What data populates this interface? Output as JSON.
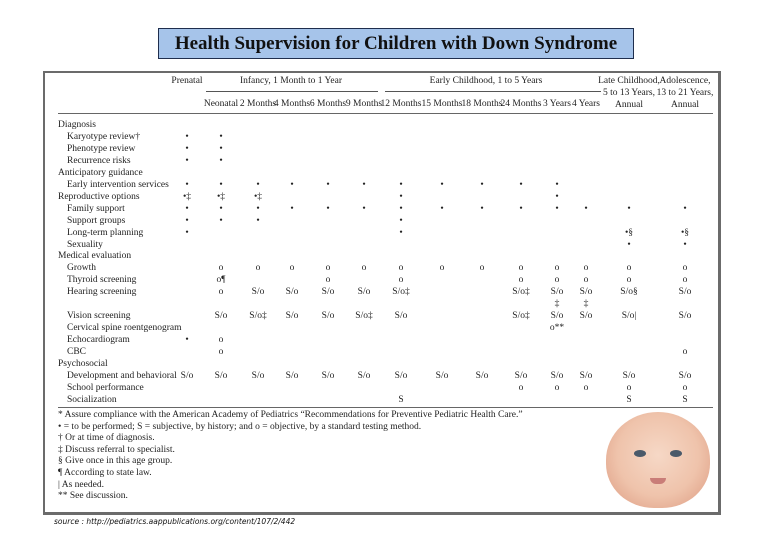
{
  "title": "Health Supervision for Children with Down Syndrome",
  "header": {
    "prenatal": "Prenatal",
    "infancy": "Infancy, 1 Month to 1 Year",
    "early": "Early Childhood, 1 to 5 Years",
    "late": [
      "Late Childhood,",
      "5 to 13 Years,",
      "Annual"
    ],
    "adol": [
      "Adolescence,",
      "13 to 21 Years,",
      "Annual"
    ],
    "columns": [
      "Neonatal",
      "2 Months",
      "4 Months",
      "6 Months",
      "9 Months",
      "12 Months",
      "15 Months",
      "18 Months",
      "24 Months",
      "3 Years",
      "4 Years"
    ]
  },
  "rows": [
    {
      "label": "Diagnosis",
      "indent": false,
      "cells": []
    },
    {
      "label": "Karyotype review†",
      "indent": true,
      "cells": [
        "•",
        "•"
      ]
    },
    {
      "label": "Phenotype review",
      "indent": true,
      "cells": [
        "•",
        "•"
      ]
    },
    {
      "label": "Recurrence risks",
      "indent": true,
      "cells": [
        "•",
        "•"
      ]
    },
    {
      "label": "Anticipatory guidance",
      "indent": false,
      "cells": []
    },
    {
      "label": "Early intervention services",
      "indent": true,
      "cells": [
        "•",
        "•",
        "•",
        "•",
        "•",
        "•",
        "•",
        "•",
        "•",
        "•",
        "•",
        "",
        "",
        ""
      ]
    },
    {
      "label": "Reproductive options",
      "indent": false,
      "cells": [
        "•‡",
        "•‡",
        "•‡",
        "",
        "",
        "",
        "•",
        "",
        "",
        "",
        "•",
        "",
        "",
        ""
      ]
    },
    {
      "label": "Family support",
      "indent": true,
      "cells": [
        "•",
        "•",
        "•",
        "•",
        "•",
        "•",
        "•",
        "•",
        "•",
        "•",
        "•",
        "•",
        "•",
        "•"
      ]
    },
    {
      "label": "Support groups",
      "indent": true,
      "cells": [
        "•",
        "•",
        "•",
        "",
        "",
        "",
        "•",
        "",
        "",
        "",
        "",
        "",
        "",
        ""
      ]
    },
    {
      "label": "Long-term planning",
      "indent": true,
      "cells": [
        "•",
        "",
        "",
        "",
        "",
        "",
        "•",
        "",
        "",
        "",
        "",
        "",
        "•§",
        "•§"
      ]
    },
    {
      "label": "Sexuality",
      "indent": true,
      "cells": [
        "",
        "",
        "",
        "",
        "",
        "",
        "",
        "",
        "",
        "",
        "",
        "",
        "•",
        "•"
      ]
    },
    {
      "label": "Medical evaluation",
      "indent": false,
      "cells": []
    },
    {
      "label": "Growth",
      "indent": true,
      "cells": [
        "",
        "o",
        "o",
        "o",
        "o",
        "o",
        "o",
        "o",
        "o",
        "o",
        "o",
        "o",
        "o",
        "o"
      ]
    },
    {
      "label": "Thyroid screening",
      "indent": true,
      "cells": [
        "",
        "o¶",
        "",
        "",
        "o",
        "",
        "o",
        "",
        "",
        "o",
        "o",
        "o",
        "o",
        "o"
      ]
    },
    {
      "label": "Hearing screening",
      "indent": true,
      "cells": [
        "",
        "o",
        "S/o",
        "S/o",
        "S/o",
        "S/o",
        "S/o‡",
        "",
        "",
        "S/o‡",
        "S/o",
        "S/o",
        "S/o§",
        "S/o"
      ]
    },
    {
      "label": "",
      "indent": true,
      "cells": [
        "",
        "",
        "",
        "",
        "",
        "",
        "",
        "",
        "",
        "",
        "‡",
        "‡",
        "",
        ""
      ]
    },
    {
      "label": "Vision screening",
      "indent": true,
      "cells": [
        "",
        "S/o",
        "S/o‡",
        "S/o",
        "S/o",
        "S/o‡",
        "S/o",
        "",
        "",
        "S/o‡",
        "S/o",
        "S/o",
        "S/o|",
        "S/o"
      ]
    },
    {
      "label": "Cervical spine roentgenogram",
      "indent": true,
      "cells": [
        "",
        "",
        "",
        "",
        "",
        "",
        "",
        "",
        "",
        "",
        "o**",
        "",
        "",
        ""
      ]
    },
    {
      "label": "Echocardiogram",
      "indent": true,
      "cells": [
        "•",
        "o"
      ]
    },
    {
      "label": "CBC",
      "indent": true,
      "cells": [
        "",
        "o",
        "",
        "",
        "",
        "",
        "",
        "",
        "",
        "",
        "",
        "",
        "",
        "o"
      ]
    },
    {
      "label": "Psychosocial",
      "indent": false,
      "cells": []
    },
    {
      "label": "Development and behavioral",
      "indent": true,
      "cells": [
        "S/o",
        "S/o",
        "S/o",
        "S/o",
        "S/o",
        "S/o",
        "S/o",
        "S/o",
        "S/o",
        "S/o",
        "S/o",
        "S/o",
        "S/o",
        "S/o"
      ]
    },
    {
      "label": "School performance",
      "indent": true,
      "cells": [
        "",
        "",
        "",
        "",
        "",
        "",
        "",
        "",
        "",
        "o",
        "o",
        "o",
        "o",
        "o"
      ]
    },
    {
      "label": "Socialization",
      "indent": true,
      "cells": [
        "",
        "",
        "",
        "",
        "",
        "",
        "S",
        "",
        "",
        "",
        "",
        "",
        "S",
        "S"
      ]
    }
  ],
  "notes": [
    "* Assure compliance with the American Academy of Pediatrics “Recommendations for Preventive Pediatric Health Care.”",
    "• = to be performed; S = subjective, by history; and o = objective, by a standard testing method.",
    "† Or at time of diagnosis.",
    "‡ Discuss referral to specialist.",
    "§ Give once in this age group.",
    "¶ According to state law.",
    "| As needed.",
    "** See discussion."
  ],
  "source": "source : http://pediatrics.aappublications.org/content/107/2/442"
}
